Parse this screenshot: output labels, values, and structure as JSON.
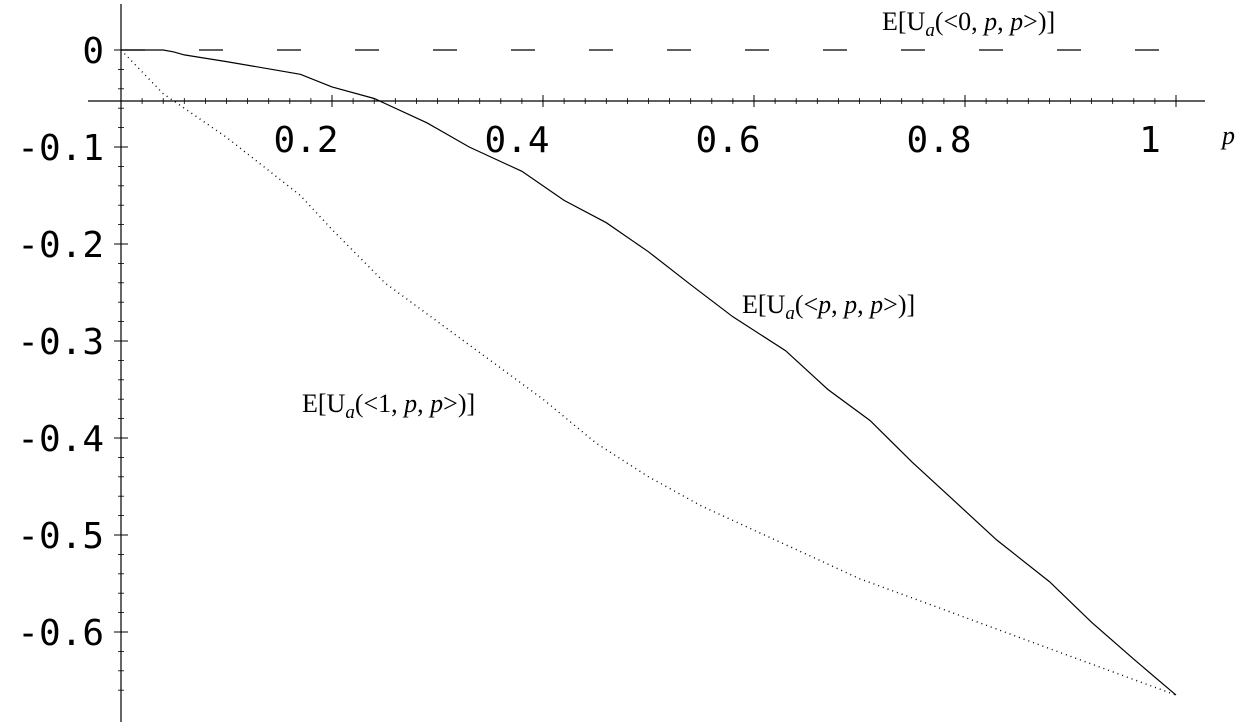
{
  "chart_data": {
    "type": "line",
    "title": "",
    "xlabel": "p",
    "ylabel": "",
    "xlim": [
      0,
      1.03
    ],
    "ylim": [
      -0.67,
      0.02
    ],
    "x_ticks": [
      0.2,
      0.4,
      0.6,
      0.8,
      1
    ],
    "x_tick_labels": [
      "0.2",
      "0.4",
      "0.6",
      "0.8",
      "1"
    ],
    "y_ticks": [
      0,
      -0.1,
      -0.2,
      -0.3,
      -0.4,
      -0.5,
      -0.6
    ],
    "y_tick_labels": [
      "0",
      "-0.1",
      "-0.2",
      "-0.3",
      "-0.4",
      "-0.5",
      "-0.6"
    ],
    "grid": false,
    "legend": "none",
    "series": [
      {
        "style": "dashed",
        "annotation": {
          "pre": "E[U",
          "sub": "a",
          "mid1": "(<0, ",
          "it1": "p",
          "mid2": ", ",
          "it2": "p",
          "post": ">)]"
        },
        "x": [
          0,
          0.1,
          0.2,
          0.3,
          0.4,
          0.5,
          0.6,
          0.7,
          0.8,
          0.9,
          1
        ],
        "y": [
          0,
          0,
          0,
          0,
          0,
          0,
          0,
          0,
          0,
          0,
          0
        ]
      },
      {
        "style": "solid",
        "annotation": {
          "pre": "E[U",
          "sub": "a",
          "mid1": "(<",
          "it1": "p",
          "mid2": ", ",
          "it2": "p",
          "mid3": ", ",
          "it3": "p",
          "post": ">)]"
        },
        "x": [
          0,
          0.04,
          0.05,
          0.06,
          0.1,
          0.17,
          0.2,
          0.24,
          0.29,
          0.33,
          0.38,
          0.42,
          0.46,
          0.5,
          0.54,
          0.58,
          0.63,
          0.67,
          0.71,
          0.75,
          0.79,
          0.83,
          0.88,
          0.92,
          0.96,
          1
        ],
        "y": [
          0,
          0,
          -0.002,
          -0.005,
          -0.012,
          -0.025,
          -0.038,
          -0.05,
          -0.075,
          -0.1,
          -0.125,
          -0.155,
          -0.178,
          -0.208,
          -0.242,
          -0.275,
          -0.31,
          -0.35,
          -0.382,
          -0.425,
          -0.465,
          -0.505,
          -0.548,
          -0.59,
          -0.628,
          -0.665
        ]
      },
      {
        "style": "dotted",
        "annotation": {
          "pre": "E[U",
          "sub": "a",
          "mid1": "(<1, ",
          "it1": "p",
          "mid2": ", ",
          "it2": "p",
          "post": ">)]"
        },
        "x": [
          0,
          0.04,
          0.1,
          0.17,
          0.2,
          0.25,
          0.3,
          0.35,
          0.4,
          0.45,
          0.5,
          0.55,
          0.6,
          0.65,
          0.7,
          0.75,
          0.8,
          0.85,
          0.9,
          0.95,
          1
        ],
        "y": [
          0,
          -0.045,
          -0.09,
          -0.15,
          -0.185,
          -0.24,
          -0.28,
          -0.32,
          -0.36,
          -0.405,
          -0.44,
          -0.47,
          -0.495,
          -0.52,
          -0.545,
          -0.565,
          -0.585,
          -0.605,
          -0.625,
          -0.645,
          -0.665
        ]
      }
    ]
  }
}
